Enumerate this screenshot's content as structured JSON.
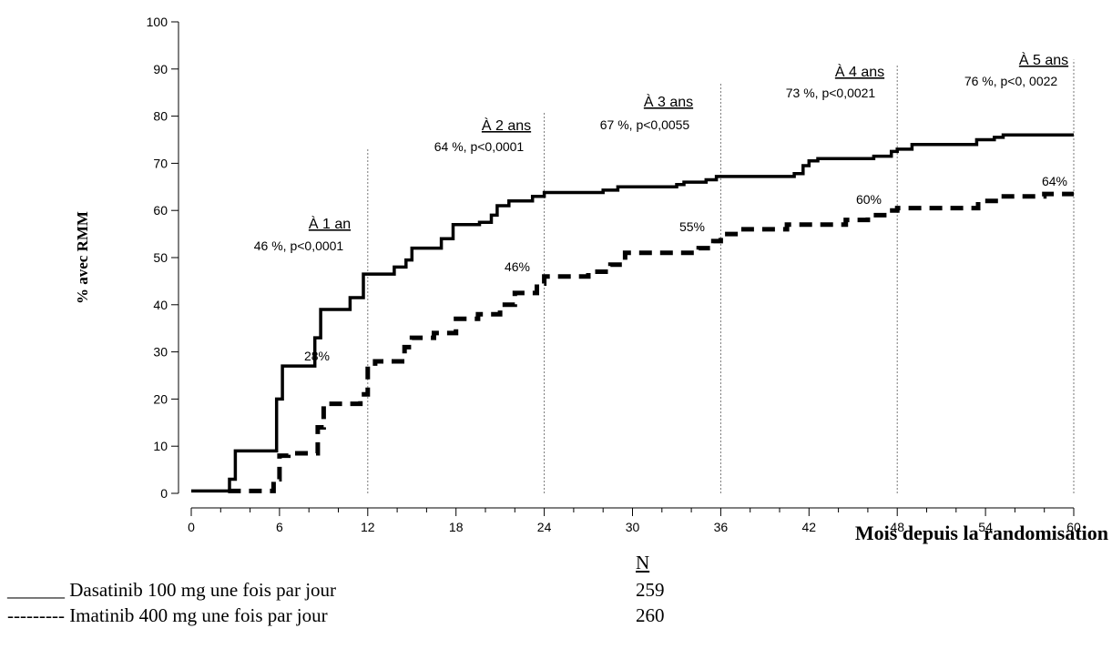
{
  "chart_data": {
    "type": "line",
    "ylabel": "% avec RMM",
    "xlabel": "Mois depuis la randomisation",
    "xlim": [
      0,
      60
    ],
    "ylim": [
      0,
      100
    ],
    "xticks": [
      0,
      6,
      12,
      18,
      24,
      30,
      36,
      42,
      48,
      54,
      60
    ],
    "yticks": [
      0,
      10,
      20,
      30,
      40,
      50,
      60,
      70,
      80,
      90,
      100
    ],
    "grid": false,
    "series": [
      {
        "name": "Dasatinib 100 mg une fois par jour",
        "style": "solid",
        "color": "#000000",
        "points": [
          [
            0,
            0.5
          ],
          [
            2.6,
            0.5
          ],
          [
            2.6,
            3
          ],
          [
            3,
            3
          ],
          [
            3,
            9
          ],
          [
            5.8,
            9
          ],
          [
            5.8,
            20
          ],
          [
            6.2,
            20
          ],
          [
            6.2,
            27
          ],
          [
            8.4,
            27
          ],
          [
            8.4,
            33
          ],
          [
            8.8,
            33
          ],
          [
            8.8,
            39
          ],
          [
            10.8,
            39
          ],
          [
            10.8,
            41.5
          ],
          [
            11.7,
            41.5
          ],
          [
            11.7,
            46.5
          ],
          [
            13.8,
            46.5
          ],
          [
            13.8,
            48
          ],
          [
            14.6,
            48
          ],
          [
            14.6,
            49.5
          ],
          [
            15,
            49.5
          ],
          [
            15,
            52
          ],
          [
            17,
            52
          ],
          [
            17,
            54
          ],
          [
            17.8,
            54
          ],
          [
            17.8,
            57
          ],
          [
            19.6,
            57
          ],
          [
            19.6,
            57.5
          ],
          [
            20.4,
            57.5
          ],
          [
            20.4,
            59
          ],
          [
            20.8,
            59
          ],
          [
            20.8,
            61
          ],
          [
            21.6,
            61
          ],
          [
            21.6,
            62
          ],
          [
            23.2,
            62
          ],
          [
            23.2,
            63
          ],
          [
            24,
            63
          ],
          [
            24,
            63.8
          ],
          [
            28,
            63.8
          ],
          [
            28,
            64.3
          ],
          [
            29,
            64.3
          ],
          [
            29,
            65
          ],
          [
            33,
            65
          ],
          [
            33,
            65.5
          ],
          [
            33.5,
            65.5
          ],
          [
            33.5,
            66
          ],
          [
            35,
            66
          ],
          [
            35,
            66.5
          ],
          [
            35.7,
            66.5
          ],
          [
            35.7,
            67.2
          ],
          [
            41,
            67.2
          ],
          [
            41,
            67.8
          ],
          [
            41.6,
            67.8
          ],
          [
            41.6,
            69.5
          ],
          [
            42,
            69.5
          ],
          [
            42,
            70.5
          ],
          [
            42.6,
            70.5
          ],
          [
            42.6,
            71
          ],
          [
            46.4,
            71
          ],
          [
            46.4,
            71.5
          ],
          [
            47.6,
            71.5
          ],
          [
            47.6,
            72.5
          ],
          [
            48,
            72.5
          ],
          [
            48,
            73
          ],
          [
            49,
            73
          ],
          [
            49,
            74
          ],
          [
            53.4,
            74
          ],
          [
            53.4,
            75
          ],
          [
            54.6,
            75
          ],
          [
            54.6,
            75.5
          ],
          [
            55.2,
            75.5
          ],
          [
            55.2,
            76
          ],
          [
            60,
            76
          ]
        ]
      },
      {
        "name": "Imatinib 400 mg une fois par jour",
        "style": "dashed",
        "color": "#000000",
        "points": [
          [
            2.5,
            0.5
          ],
          [
            5.6,
            0.5
          ],
          [
            5.6,
            3
          ],
          [
            6,
            3
          ],
          [
            6,
            8
          ],
          [
            6.6,
            8
          ],
          [
            6.6,
            8.5
          ],
          [
            8.6,
            8.5
          ],
          [
            8.6,
            14
          ],
          [
            9,
            14
          ],
          [
            9,
            19
          ],
          [
            11.5,
            19
          ],
          [
            11.5,
            21
          ],
          [
            12,
            21
          ],
          [
            12,
            27
          ],
          [
            12.5,
            27
          ],
          [
            12.5,
            28
          ],
          [
            14.5,
            28
          ],
          [
            14.5,
            31
          ],
          [
            15,
            31
          ],
          [
            15,
            33
          ],
          [
            16.5,
            33
          ],
          [
            16.5,
            34
          ],
          [
            18,
            34
          ],
          [
            18,
            37
          ],
          [
            19.5,
            37
          ],
          [
            19.5,
            38
          ],
          [
            21,
            38
          ],
          [
            21,
            40
          ],
          [
            22,
            40
          ],
          [
            22,
            42.5
          ],
          [
            23.5,
            42.5
          ],
          [
            23.5,
            44.5
          ],
          [
            24,
            44.5
          ],
          [
            24,
            46
          ],
          [
            27,
            46
          ],
          [
            27,
            47
          ],
          [
            28.5,
            47
          ],
          [
            28.5,
            48.5
          ],
          [
            29.5,
            48.5
          ],
          [
            29.5,
            51
          ],
          [
            34.5,
            51
          ],
          [
            34.5,
            52
          ],
          [
            35.5,
            52
          ],
          [
            35.5,
            53.5
          ],
          [
            36,
            53.5
          ],
          [
            36,
            55
          ],
          [
            37,
            55
          ],
          [
            37,
            56
          ],
          [
            40.5,
            56
          ],
          [
            40.5,
            57
          ],
          [
            44.5,
            57
          ],
          [
            44.5,
            58
          ],
          [
            46,
            58
          ],
          [
            46,
            59
          ],
          [
            47.5,
            59
          ],
          [
            47.5,
            60
          ],
          [
            48,
            60
          ],
          [
            48,
            60.5
          ],
          [
            53.5,
            60.5
          ],
          [
            53.5,
            62
          ],
          [
            55,
            62
          ],
          [
            55,
            63
          ],
          [
            58,
            63
          ],
          [
            58,
            63.5
          ],
          [
            60,
            63.5
          ]
        ]
      }
    ],
    "vlines": [
      12,
      24,
      36,
      48,
      60
    ],
    "annotations": [
      {
        "title": "À 1 an",
        "text": "46 %, p<0,0001",
        "x": 12,
        "imatinib_label": "28%"
      },
      {
        "title": "À 2 ans",
        "text": "64 %, p<0,0001",
        "x": 24,
        "imatinib_label": "46%"
      },
      {
        "title": "À 3 ans",
        "text": "67 %, p<0,0055",
        "x": 36,
        "imatinib_label": "55%"
      },
      {
        "title": "À 4 ans",
        "text": "73 %, p<0,0021",
        "x": 48,
        "imatinib_label": "60%"
      },
      {
        "title": "À 5 ans",
        "text": "76 %, p<0, 0022",
        "x": 60,
        "imatinib_label": "64%"
      }
    ]
  },
  "legend": {
    "n_header": "N",
    "rows": [
      {
        "label": "______ Dasatinib 100 mg une fois par jour",
        "n": "259"
      },
      {
        "label": "--------- Imatinib 400 mg une fois par jour",
        "n": "260"
      }
    ]
  }
}
